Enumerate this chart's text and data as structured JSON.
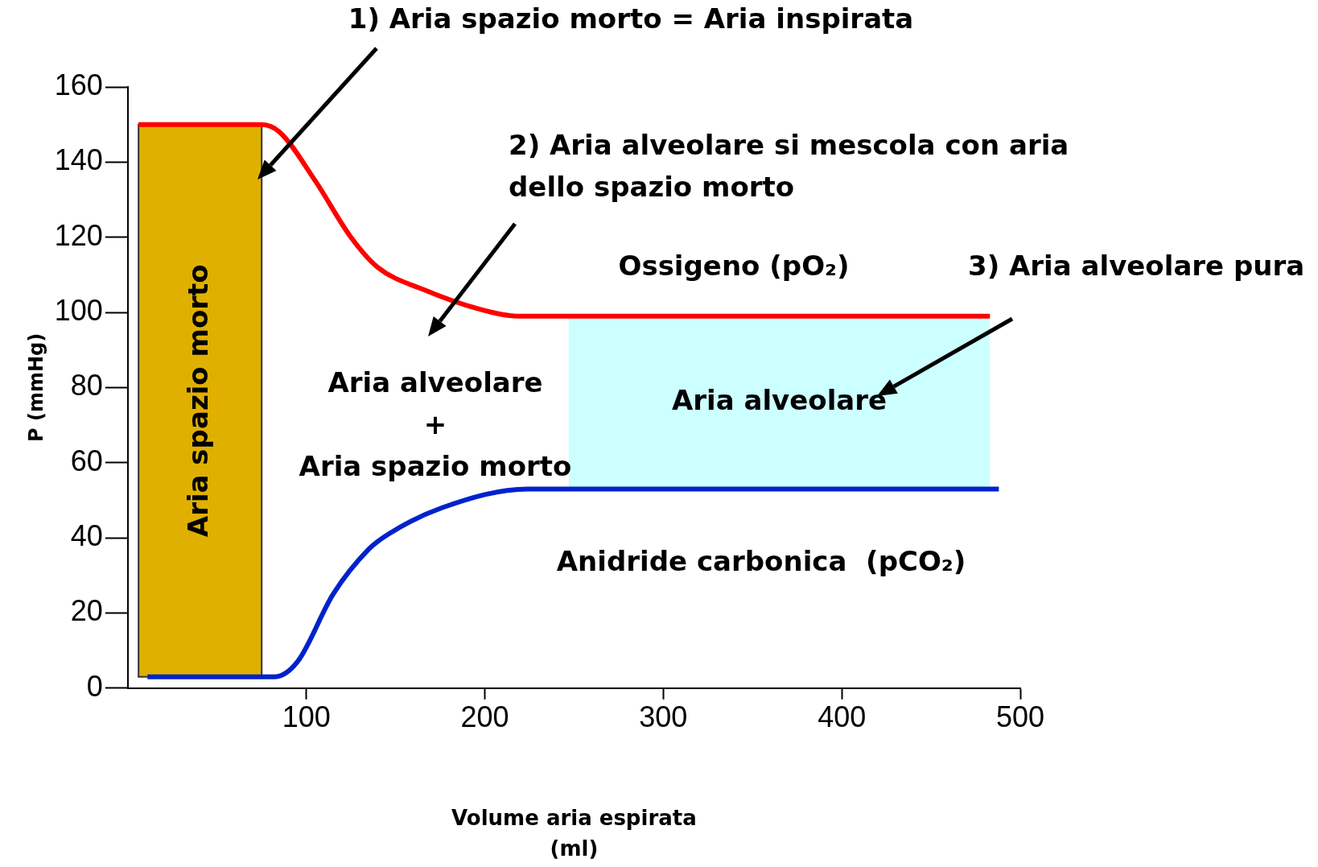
{
  "chart_data": {
    "type": "line",
    "xlabel": "Volume aria espirata\n(ml)",
    "ylabel": "P (mmHg)",
    "xlim": [
      0,
      500
    ],
    "xticks": [
      100,
      200,
      300,
      400,
      500
    ],
    "ylim": [
      0,
      160
    ],
    "yticks": [
      0,
      20,
      40,
      60,
      80,
      100,
      120,
      140,
      160
    ],
    "grid": false,
    "marker": "none",
    "series": [
      {
        "name": "Ossigeno (pO₂)",
        "color": "#ff0000",
        "x": [
          6,
          75,
          85,
          105,
          125,
          140,
          166,
          196,
          219,
          483
        ],
        "values": [
          150,
          150,
          148,
          135,
          120,
          112,
          106,
          101,
          99,
          99
        ]
      },
      {
        "name": "Anidride carbonica  (pCO₂)",
        "color": "#0022cc",
        "x": [
          11,
          77,
          82,
          95,
          115,
          135,
          146,
          176,
          224,
          488
        ],
        "values": [
          3,
          3,
          3,
          7,
          25,
          37,
          41,
          48,
          53,
          53
        ]
      }
    ],
    "bands": [
      {
        "axis": "x",
        "from": 6,
        "to": 75,
        "label": "Aria spazio morto",
        "color": "#e0b000"
      },
      {
        "axis": "x",
        "from": 247,
        "to": 483,
        "label": "Aria alveolare",
        "color": "#ccffff"
      }
    ],
    "annotations": [
      "1) Aria spazio morto = Aria inspirata",
      "2) Aria alveolare si mescola con aria\ndello spazio morto",
      "3) Aria alveolare pura",
      "Aria alveolare\n+\nAria spazio morto"
    ]
  }
}
